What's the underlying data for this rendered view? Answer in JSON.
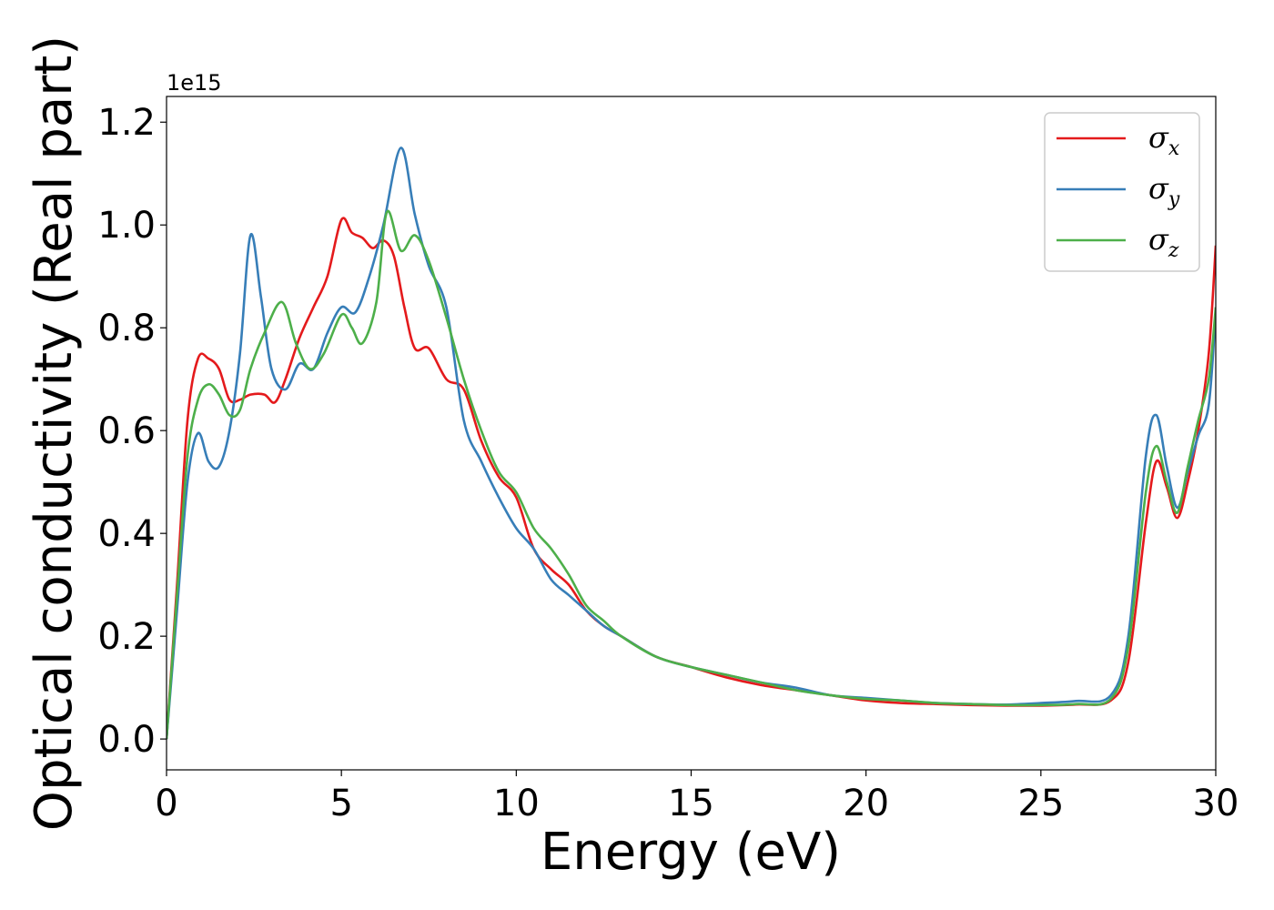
{
  "chart_data": {
    "type": "line",
    "xlabel": "Energy (eV)",
    "ylabel": "Optical conductivity (Real part)",
    "offset_text": "1e15",
    "xlim": [
      0,
      30
    ],
    "ylim": [
      -0.06,
      1.25
    ],
    "y_scale_multiplier": 1000000000000000.0,
    "xticks": [
      0,
      5,
      10,
      15,
      20,
      25,
      30
    ],
    "xtick_labels": [
      "0",
      "5",
      "10",
      "15",
      "20",
      "25",
      "30"
    ],
    "yticks": [
      0.0,
      0.2,
      0.4,
      0.6,
      0.8,
      1.0,
      1.2
    ],
    "ytick_labels": [
      "0.0",
      "0.2",
      "0.4",
      "0.6",
      "0.8",
      "1.0",
      "1.2"
    ],
    "grid": false,
    "legend_position": "top-right",
    "series": [
      {
        "name": "σx",
        "symbol": "σ",
        "subscript": "x",
        "color": "#e41a1c",
        "points": [
          [
            0,
            0
          ],
          [
            0.3,
            0.3
          ],
          [
            0.6,
            0.62
          ],
          [
            0.9,
            0.74
          ],
          [
            1.2,
            0.74
          ],
          [
            1.5,
            0.72
          ],
          [
            1.8,
            0.66
          ],
          [
            2.1,
            0.66
          ],
          [
            2.4,
            0.67
          ],
          [
            2.8,
            0.67
          ],
          [
            3.1,
            0.655
          ],
          [
            3.4,
            0.7
          ],
          [
            3.8,
            0.78
          ],
          [
            4.2,
            0.84
          ],
          [
            4.6,
            0.9
          ],
          [
            5.0,
            1.01
          ],
          [
            5.3,
            0.985
          ],
          [
            5.6,
            0.975
          ],
          [
            5.9,
            0.955
          ],
          [
            6.2,
            0.97
          ],
          [
            6.5,
            0.94
          ],
          [
            6.8,
            0.84
          ],
          [
            7.1,
            0.76
          ],
          [
            7.5,
            0.76
          ],
          [
            8.0,
            0.7
          ],
          [
            8.5,
            0.68
          ],
          [
            9.0,
            0.58
          ],
          [
            9.5,
            0.51
          ],
          [
            10.0,
            0.47
          ],
          [
            10.5,
            0.37
          ],
          [
            11.0,
            0.33
          ],
          [
            11.5,
            0.3
          ],
          [
            12.0,
            0.25
          ],
          [
            12.5,
            0.22
          ],
          [
            13.0,
            0.2
          ],
          [
            14.0,
            0.16
          ],
          [
            15.0,
            0.14
          ],
          [
            16.0,
            0.12
          ],
          [
            17.0,
            0.105
          ],
          [
            18.0,
            0.095
          ],
          [
            19.0,
            0.085
          ],
          [
            20.0,
            0.075
          ],
          [
            21.0,
            0.07
          ],
          [
            22.0,
            0.068
          ],
          [
            23.0,
            0.066
          ],
          [
            24.0,
            0.065
          ],
          [
            25.0,
            0.065
          ],
          [
            26.0,
            0.067
          ],
          [
            27.0,
            0.075
          ],
          [
            27.5,
            0.15
          ],
          [
            28.0,
            0.42
          ],
          [
            28.3,
            0.54
          ],
          [
            28.6,
            0.49
          ],
          [
            28.9,
            0.43
          ],
          [
            29.2,
            0.5
          ],
          [
            29.5,
            0.6
          ],
          [
            29.8,
            0.75
          ],
          [
            30.0,
            0.96
          ]
        ]
      },
      {
        "name": "σy",
        "symbol": "σ",
        "subscript": "y",
        "color": "#377eb8",
        "points": [
          [
            0,
            0
          ],
          [
            0.3,
            0.25
          ],
          [
            0.6,
            0.5
          ],
          [
            0.9,
            0.595
          ],
          [
            1.2,
            0.54
          ],
          [
            1.5,
            0.53
          ],
          [
            1.8,
            0.6
          ],
          [
            2.1,
            0.75
          ],
          [
            2.4,
            0.98
          ],
          [
            2.7,
            0.86
          ],
          [
            3.0,
            0.72
          ],
          [
            3.4,
            0.68
          ],
          [
            3.8,
            0.73
          ],
          [
            4.2,
            0.72
          ],
          [
            4.6,
            0.79
          ],
          [
            5.0,
            0.84
          ],
          [
            5.4,
            0.83
          ],
          [
            5.8,
            0.9
          ],
          [
            6.2,
            1.0
          ],
          [
            6.7,
            1.15
          ],
          [
            7.1,
            1.02
          ],
          [
            7.5,
            0.92
          ],
          [
            8.0,
            0.84
          ],
          [
            8.5,
            0.62
          ],
          [
            9.0,
            0.54
          ],
          [
            9.5,
            0.47
          ],
          [
            10.0,
            0.41
          ],
          [
            10.5,
            0.37
          ],
          [
            11.0,
            0.31
          ],
          [
            11.5,
            0.28
          ],
          [
            12.0,
            0.25
          ],
          [
            12.5,
            0.22
          ],
          [
            13.0,
            0.2
          ],
          [
            14.0,
            0.16
          ],
          [
            15.0,
            0.14
          ],
          [
            16.0,
            0.125
          ],
          [
            17.0,
            0.11
          ],
          [
            18.0,
            0.1
          ],
          [
            19.0,
            0.085
          ],
          [
            20.0,
            0.08
          ],
          [
            21.0,
            0.075
          ],
          [
            22.0,
            0.07
          ],
          [
            23.0,
            0.068
          ],
          [
            24.0,
            0.067
          ],
          [
            25.0,
            0.07
          ],
          [
            26.0,
            0.074
          ],
          [
            27.0,
            0.085
          ],
          [
            27.5,
            0.2
          ],
          [
            28.0,
            0.55
          ],
          [
            28.3,
            0.63
          ],
          [
            28.6,
            0.53
          ],
          [
            28.9,
            0.45
          ],
          [
            29.2,
            0.52
          ],
          [
            29.5,
            0.59
          ],
          [
            29.8,
            0.65
          ],
          [
            30.0,
            0.83
          ]
        ]
      },
      {
        "name": "σz",
        "symbol": "σ",
        "subscript": "z",
        "color": "#4daf4a",
        "points": [
          [
            0,
            0
          ],
          [
            0.3,
            0.28
          ],
          [
            0.6,
            0.55
          ],
          [
            0.9,
            0.66
          ],
          [
            1.2,
            0.69
          ],
          [
            1.5,
            0.67
          ],
          [
            1.8,
            0.63
          ],
          [
            2.1,
            0.64
          ],
          [
            2.4,
            0.72
          ],
          [
            2.8,
            0.79
          ],
          [
            3.3,
            0.85
          ],
          [
            3.7,
            0.77
          ],
          [
            4.1,
            0.72
          ],
          [
            4.5,
            0.75
          ],
          [
            5.0,
            0.825
          ],
          [
            5.3,
            0.8
          ],
          [
            5.6,
            0.77
          ],
          [
            6.0,
            0.85
          ],
          [
            6.3,
            1.025
          ],
          [
            6.7,
            0.95
          ],
          [
            7.1,
            0.98
          ],
          [
            7.5,
            0.93
          ],
          [
            8.0,
            0.82
          ],
          [
            8.5,
            0.7
          ],
          [
            9.0,
            0.6
          ],
          [
            9.5,
            0.52
          ],
          [
            10.0,
            0.48
          ],
          [
            10.5,
            0.41
          ],
          [
            11.0,
            0.37
          ],
          [
            11.5,
            0.32
          ],
          [
            12.0,
            0.26
          ],
          [
            12.5,
            0.23
          ],
          [
            13.0,
            0.2
          ],
          [
            14.0,
            0.16
          ],
          [
            15.0,
            0.14
          ],
          [
            16.0,
            0.125
          ],
          [
            17.0,
            0.11
          ],
          [
            18.0,
            0.095
          ],
          [
            19.0,
            0.085
          ],
          [
            20.0,
            0.078
          ],
          [
            21.0,
            0.075
          ],
          [
            22.0,
            0.07
          ],
          [
            23.0,
            0.068
          ],
          [
            24.0,
            0.066
          ],
          [
            25.0,
            0.066
          ],
          [
            26.0,
            0.068
          ],
          [
            27.0,
            0.078
          ],
          [
            27.5,
            0.18
          ],
          [
            28.0,
            0.48
          ],
          [
            28.3,
            0.57
          ],
          [
            28.6,
            0.5
          ],
          [
            28.9,
            0.44
          ],
          [
            29.2,
            0.53
          ],
          [
            29.5,
            0.62
          ],
          [
            29.8,
            0.7
          ],
          [
            30.0,
            0.84
          ]
        ]
      }
    ]
  }
}
